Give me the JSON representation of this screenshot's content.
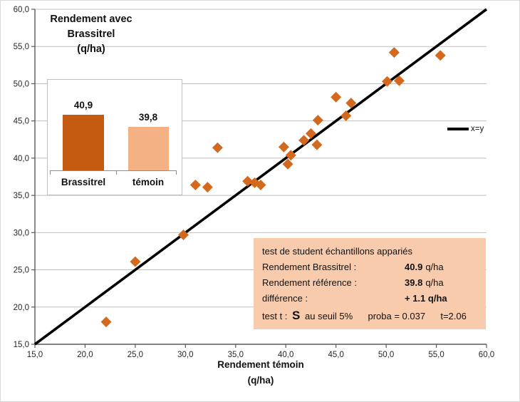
{
  "chart_data": {
    "type": "scatter",
    "xlabel_lines": [
      "Rendement  témoin",
      "(q/ha)"
    ],
    "xlim": [
      15,
      60
    ],
    "ylim": [
      15,
      60
    ],
    "ticks": {
      "values": [
        15,
        20,
        25,
        30,
        35,
        40,
        45,
        50,
        55,
        60
      ],
      "labels": [
        "15,0",
        "20,0",
        "25,0",
        "30,0",
        "35,0",
        "40,0",
        "45,0",
        "50,0",
        "55,0",
        "60,0"
      ]
    },
    "grid": "horizontal-only",
    "points": [
      [
        22.1,
        18.0
      ],
      [
        25.0,
        26.1
      ],
      [
        29.8,
        29.7
      ],
      [
        31.0,
        36.4
      ],
      [
        32.2,
        36.1
      ],
      [
        33.2,
        41.4
      ],
      [
        36.2,
        36.9
      ],
      [
        36.9,
        36.7
      ],
      [
        37.5,
        36.4
      ],
      [
        39.8,
        41.5
      ],
      [
        40.5,
        40.4
      ],
      [
        40.2,
        39.2
      ],
      [
        41.8,
        42.4
      ],
      [
        42.5,
        43.3
      ],
      [
        43.1,
        41.8
      ],
      [
        43.2,
        45.1
      ],
      [
        45.0,
        48.2
      ],
      [
        46.5,
        47.4
      ],
      [
        46.0,
        45.7
      ],
      [
        50.1,
        50.3
      ],
      [
        51.3,
        50.4
      ],
      [
        50.8,
        54.2
      ],
      [
        55.4,
        53.8
      ]
    ],
    "identity_line": {
      "from": [
        15,
        15
      ],
      "to": [
        60,
        60
      ],
      "label": "x=y",
      "color": "#000000"
    },
    "marker": {
      "shape": "diamond",
      "color": "#D2691E",
      "size": 15
    },
    "colors": {
      "grid": "#BFBFBF",
      "axis": "#595959",
      "tick_text": "#262626"
    }
  },
  "inset_chart": {
    "type": "bar",
    "title_lines": [
      "Rendement avec",
      "Brassitrel",
      "(q/ha)"
    ],
    "categories": [
      "Brassitrel",
      "témoin"
    ],
    "value_labels": [
      "40,9",
      "39,8"
    ],
    "values": [
      40.9,
      39.8
    ],
    "bar_colors": [
      "#C55A11",
      "#F4B183"
    ]
  },
  "legend": {
    "label": "x=y"
  },
  "stats_box": {
    "bg_color": "#F8CBAD",
    "title": "test de student échantillons appariés",
    "rows": [
      {
        "label": "Rendement Brassitrel :",
        "value": "40.9",
        "unit": "q/ha"
      },
      {
        "label": "Rendement référence :",
        "value": "39.8",
        "unit": "q/ha"
      },
      {
        "label": "différence  :",
        "value": "+ 1.1 q/ha",
        "unit": ""
      }
    ],
    "test_row": {
      "prefix": "test t :",
      "s": "S",
      "mid": "au seuil 5%",
      "proba": "proba = 0.037",
      "t": "t=2.06"
    }
  }
}
